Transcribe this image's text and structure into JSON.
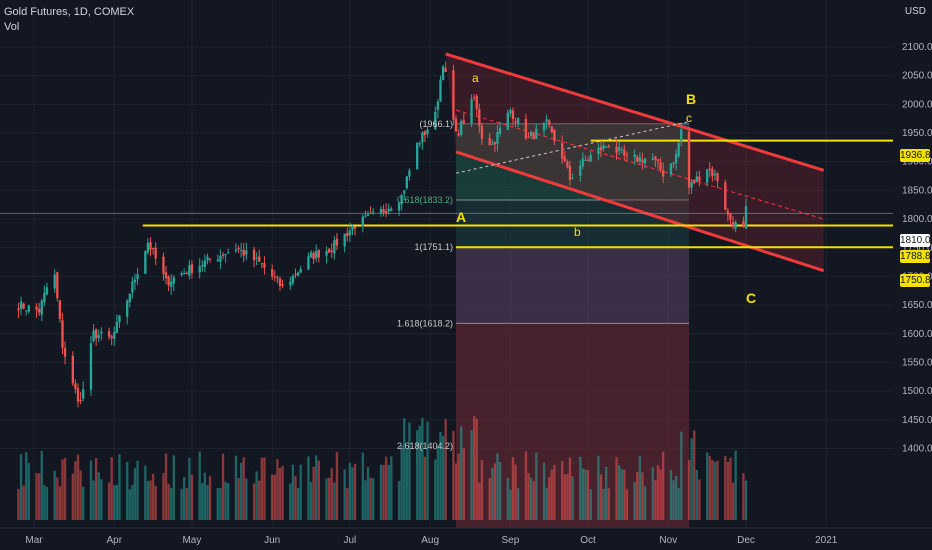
{
  "header": {
    "symbol_line": "Gold Futures, 1D, COMEX",
    "indicator": "Vol",
    "currency": "USD"
  },
  "colors": {
    "bg": "#131722",
    "up": "#26a69a",
    "down": "#ef5350",
    "yellow": "#f5e100",
    "channel": "#ef3b3b",
    "grid": "#1e222d"
  },
  "price_labels": [
    {
      "value": "1936.8",
      "style": "yellow"
    },
    {
      "value": "1810.0",
      "style": "white"
    },
    {
      "value": "1788.8",
      "style": "yellow"
    },
    {
      "value": "1750.8",
      "style": "yellow"
    }
  ],
  "wave_labels": {
    "A": "A",
    "B": "B",
    "C": "C",
    "a": "a",
    "b": "b",
    "c": "c"
  },
  "fib_labels": [
    {
      "text": "(1966.1)",
      "price": 1966.1
    },
    {
      "text": "0.618(1833.2)",
      "price": 1833.2
    },
    {
      "text": "1(1751.1)",
      "price": 1751.1
    },
    {
      "text": "1.618(1618.2)",
      "price": 1618.2
    },
    {
      "text": "2.618(1404.2)",
      "price": 1404.2
    }
  ],
  "chart_data": {
    "type": "candlestick",
    "title": "Gold Futures, 1D, COMEX",
    "ylim": [
      1385,
      2140
    ],
    "y_ticks": [
      1400,
      1450,
      1500,
      1550,
      1600,
      1650,
      1700,
      1750,
      1800,
      1850,
      1900,
      1950,
      2000,
      2050,
      2100
    ],
    "x_ticks": [
      "Mar",
      "Apr",
      "May",
      "Jun",
      "Jul",
      "Aug",
      "Sep",
      "Oct",
      "Nov",
      "Dec",
      "2021"
    ],
    "horizontal_levels": [
      1936.8,
      1788.8,
      1750.8
    ],
    "close_anchors": [
      [
        "2020-02-24",
        1650
      ],
      [
        "2020-03-03",
        1640
      ],
      [
        "2020-03-06",
        1680
      ],
      [
        "2020-03-09",
        1700
      ],
      [
        "2020-03-12",
        1580
      ],
      [
        "2020-03-16",
        1510
      ],
      [
        "2020-03-19",
        1480
      ],
      [
        "2020-03-24",
        1600
      ],
      [
        "2020-03-31",
        1590
      ],
      [
        "2020-04-06",
        1660
      ],
      [
        "2020-04-14",
        1760
      ],
      [
        "2020-04-21",
        1690
      ],
      [
        "2020-04-29",
        1710
      ],
      [
        "2020-05-18",
        1750
      ],
      [
        "2020-05-28",
        1720
      ],
      [
        "2020-06-05",
        1680
      ],
      [
        "2020-06-16",
        1735
      ],
      [
        "2020-06-24",
        1750
      ],
      [
        "2020-07-03",
        1790
      ],
      [
        "2020-07-14",
        1815
      ],
      [
        "2020-07-21",
        1840
      ],
      [
        "2020-07-27",
        1930
      ],
      [
        "2020-08-03",
        1980
      ],
      [
        "2020-08-06",
        2075
      ],
      [
        "2020-08-11",
        1945
      ],
      [
        "2020-08-18",
        2010
      ],
      [
        "2020-08-21",
        1945
      ],
      [
        "2020-08-25",
        1930
      ],
      [
        "2020-09-01",
        1990
      ],
      [
        "2020-09-08",
        1940
      ],
      [
        "2020-09-15",
        1965
      ],
      [
        "2020-09-21",
        1910
      ],
      [
        "2020-09-24",
        1870
      ],
      [
        "2020-09-28",
        1895
      ],
      [
        "2020-10-05",
        1920
      ],
      [
        "2020-10-09",
        1930
      ],
      [
        "2020-10-16",
        1905
      ],
      [
        "2020-10-26",
        1905
      ],
      [
        "2020-10-30",
        1880
      ],
      [
        "2020-11-04",
        1910
      ],
      [
        "2020-11-06",
        1955
      ],
      [
        "2020-11-09",
        1855
      ],
      [
        "2020-11-16",
        1890
      ],
      [
        "2020-11-20",
        1870
      ],
      [
        "2020-11-24",
        1805
      ],
      [
        "2020-11-27",
        1790
      ],
      [
        "2020-11-30",
        1780
      ],
      [
        "2020-12-01",
        1815
      ]
    ],
    "channel": {
      "upper": [
        [
          "2020-08-07",
          2088
        ],
        [
          "2020-12-31",
          1885
        ]
      ],
      "lower": [
        [
          "2020-08-11",
          1917
        ],
        [
          "2020-12-31",
          1710
        ]
      ]
    }
  }
}
